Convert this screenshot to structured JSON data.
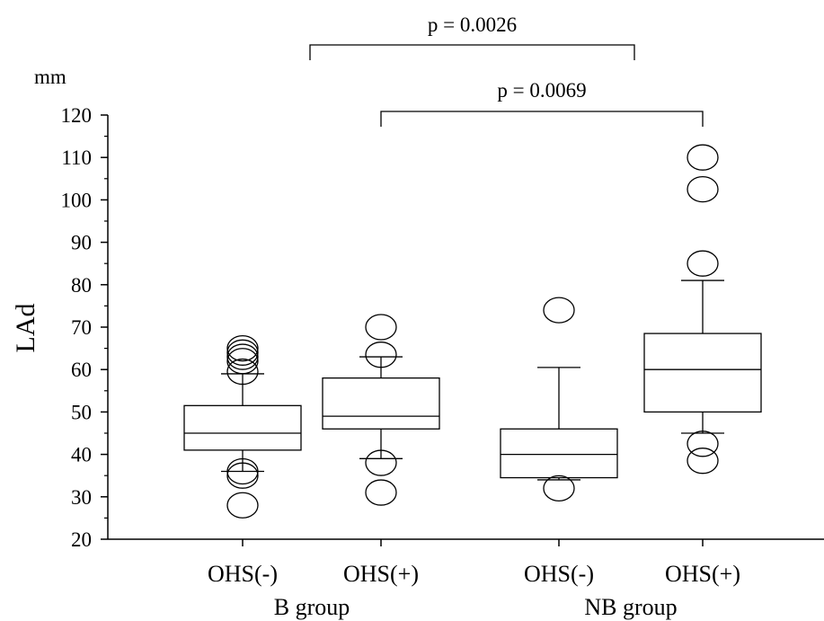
{
  "chart_data": {
    "type": "box",
    "title": "",
    "xlabel": "",
    "ylabel": "LAd",
    "y_unit": "mm",
    "ylim": [
      20,
      120
    ],
    "yticks": [
      20,
      30,
      40,
      50,
      60,
      70,
      80,
      90,
      100,
      110,
      120
    ],
    "grid": false,
    "groups": [
      {
        "name": "B group",
        "categories": [
          "OHS(-)",
          "OHS(+)"
        ]
      },
      {
        "name": "NB group",
        "categories": [
          "OHS(-)",
          "OHS(+)"
        ]
      }
    ],
    "boxes": [
      {
        "group": "B group",
        "label": "OHS(-)",
        "whisker_low": 36,
        "q1": 41,
        "median": 45,
        "q3": 51.5,
        "whisker_high": 59,
        "outliers": [
          28,
          35,
          36,
          59.5,
          62,
          63,
          64,
          65
        ]
      },
      {
        "group": "B group",
        "label": "OHS(+)",
        "whisker_low": 39,
        "q1": 46,
        "median": 49,
        "q3": 58,
        "whisker_high": 63,
        "outliers": [
          31,
          38,
          63.5,
          70
        ]
      },
      {
        "group": "NB group",
        "label": "OHS(-)",
        "whisker_low": 34,
        "q1": 34.5,
        "median": 40,
        "q3": 46,
        "whisker_high": 60.5,
        "outliers": [
          32,
          74
        ]
      },
      {
        "group": "NB group",
        "label": "OHS(+)",
        "whisker_low": 45,
        "q1": 50,
        "median": 60,
        "q3": 68.5,
        "whisker_high": 81,
        "outliers": [
          38.5,
          42.5,
          85,
          102.5,
          110
        ]
      }
    ],
    "comparisons": [
      {
        "label": "p = 0.0026",
        "from": "B group OHS(-)",
        "to": "NB group OHS(-)"
      },
      {
        "label": "p = 0.0069",
        "from": "B group OHS(+)",
        "to": "NB group OHS(+)"
      }
    ]
  }
}
